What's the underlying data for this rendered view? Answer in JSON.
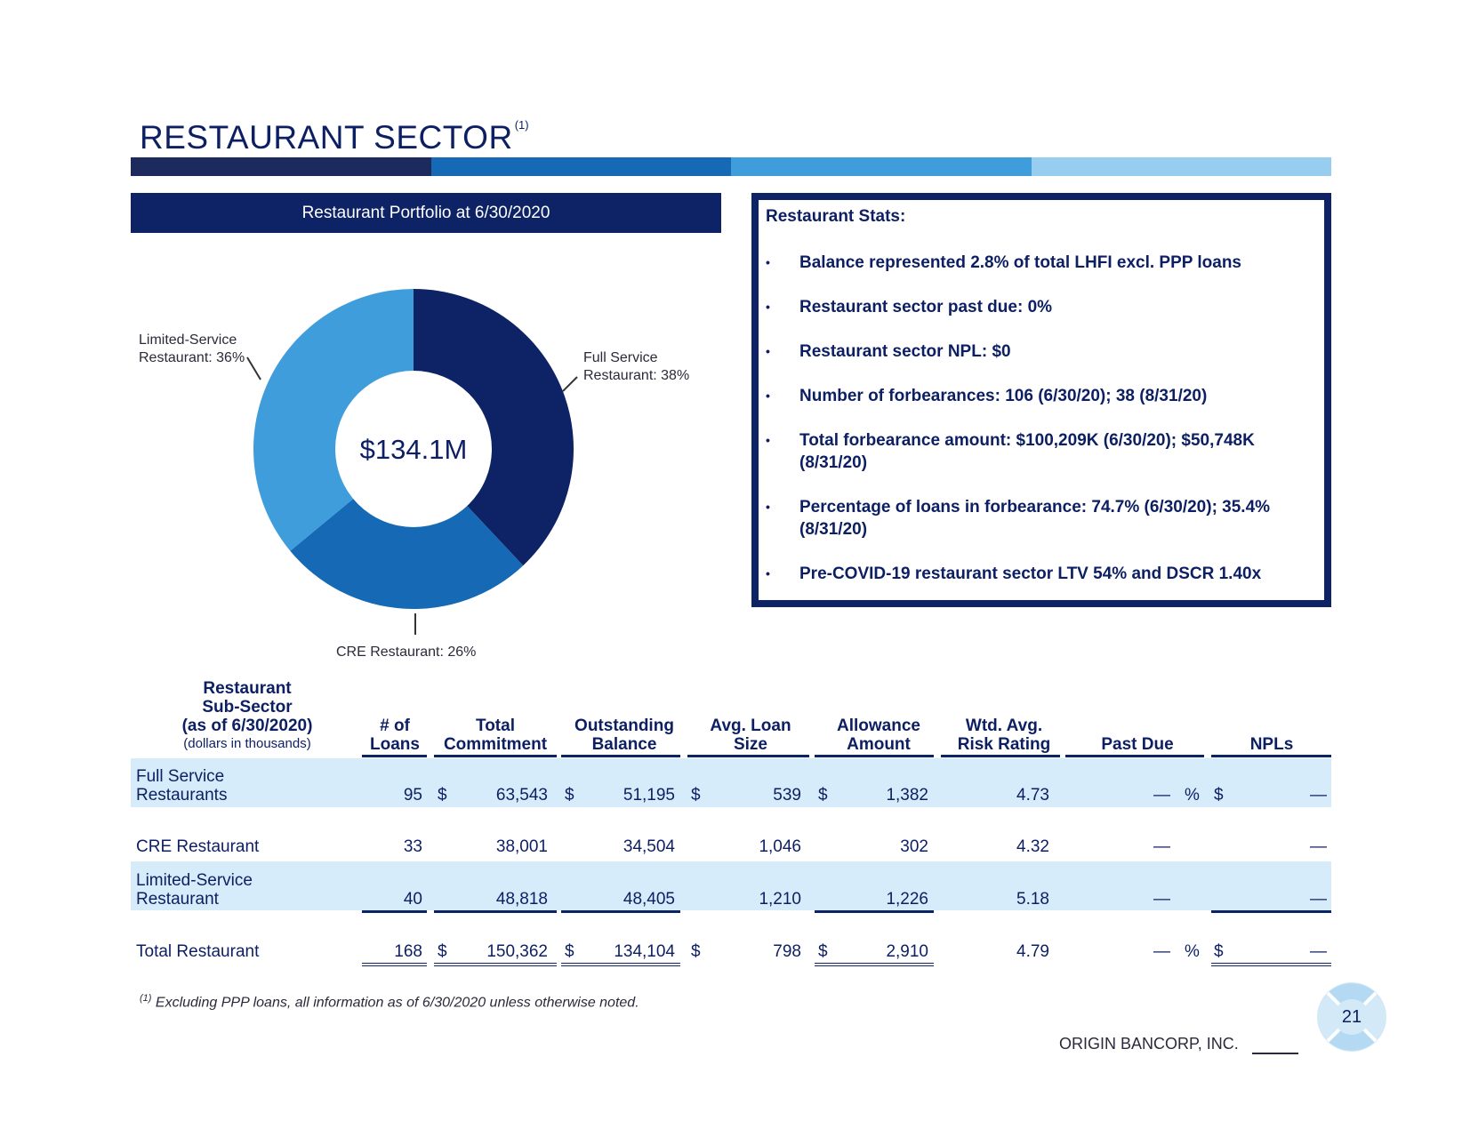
{
  "title": {
    "text": "RESTAURANT SECTOR",
    "sup": "(1)"
  },
  "colors": {
    "navy": "#0e2366",
    "blue": "#1569b5",
    "mid_blue": "#3f9ddb",
    "light_blue": "#97cdef",
    "band": "#d6ecfa"
  },
  "portfolio": {
    "banner": "Restaurant Portfolio at 6/30/2020"
  },
  "chart_data": {
    "type": "pie",
    "title": "Restaurant Portfolio at 6/30/2020",
    "center_label": "$134.1M",
    "slices": [
      {
        "label_line1": "Full Service",
        "label_line2": "Restaurant: 38%",
        "value": 38,
        "color": "#0e2366"
      },
      {
        "label_line1": "CRE Restaurant: 26%",
        "label_line2": "",
        "value": 26,
        "color": "#1569b5"
      },
      {
        "label_line1": "Limited-Service",
        "label_line2": "Restaurant: 36%",
        "value": 36,
        "color": "#3f9ddb"
      }
    ]
  },
  "stats": {
    "title": "Restaurant Stats:",
    "bullet_char": "•",
    "items": [
      "Balance represented 2.8% of total LHFI excl. PPP loans",
      "Restaurant sector past due: 0%",
      "Restaurant sector NPL: $0",
      "Number of forbearances: 106 (6/30/20); 38 (8/31/20)",
      "Total forbearance amount: $100,209K (6/30/20); $50,748K (8/31/20)",
      "Percentage of loans in forbearance: 74.7% (6/30/20); 35.4% (8/31/20)",
      "Pre-COVID-19 restaurant sector LTV 54% and DSCR 1.40x"
    ]
  },
  "table": {
    "header": {
      "subsector_l1": "Restaurant",
      "subsector_l2": "Sub-Sector",
      "subsector_l3": "(as of 6/30/2020)",
      "subsector_l4": "(dollars in thousands)",
      "loans_l1": "# of",
      "loans_l2": "Loans",
      "commit_l1": "Total",
      "commit_l2": "Commitment",
      "outstanding_l1": "Outstanding",
      "outstanding_l2": "Balance",
      "avg_l1": "Avg. Loan",
      "avg_l2": "Size",
      "allow_l1": "Allowance",
      "allow_l2": "Amount",
      "risk_l1": "Wtd. Avg.",
      "risk_l2": "Risk Rating",
      "pastdue": "Past Due",
      "npl": "NPLs"
    },
    "currency": "$",
    "percent": "%",
    "rows": [
      {
        "name_l1": "Full Service",
        "name_l2": "Restaurants",
        "loans": "95",
        "commitment": "63,543",
        "outstanding": "51,195",
        "avg": "539",
        "allowance": "1,382",
        "risk": "4.73",
        "pastdue": "—",
        "npl": "—"
      },
      {
        "name_l1": "CRE Restaurant",
        "name_l2": "",
        "loans": "33",
        "commitment": "38,001",
        "outstanding": "34,504",
        "avg": "1,046",
        "allowance": "302",
        "risk": "4.32",
        "pastdue": "—",
        "npl": "—"
      },
      {
        "name_l1": "Limited-Service",
        "name_l2": "Restaurant",
        "loans": "40",
        "commitment": "48,818",
        "outstanding": "48,405",
        "avg": "1,210",
        "allowance": "1,226",
        "risk": "5.18",
        "pastdue": "—",
        "npl": "—"
      },
      {
        "name_l1": "Total Restaurant",
        "name_l2": "",
        "loans": "168",
        "commitment": "150,362",
        "outstanding": "134,104",
        "avg": "798",
        "allowance": "2,910",
        "risk": "4.79",
        "pastdue": "—",
        "npl": "—"
      }
    ]
  },
  "footnote": {
    "sup": "(1)",
    "text": "Excluding PPP loans, all information as of 6/30/2020 unless otherwise noted."
  },
  "footer": {
    "company": "ORIGIN BANCORP, INC.",
    "page": "21"
  }
}
